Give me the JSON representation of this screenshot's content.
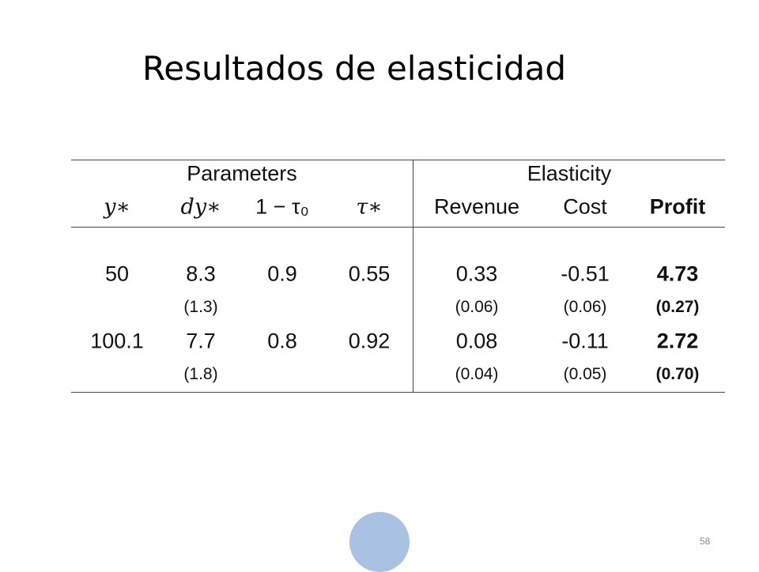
{
  "slide": {
    "title": "Resultados de elasticidad",
    "table": {
      "groups": [
        "Parameters",
        "Elasticity"
      ],
      "columns": [
        "y∗",
        "dy∗",
        "1 − τ₀",
        "τ∗",
        "Revenue",
        "Cost",
        "Profit"
      ],
      "rows": [
        [
          "50",
          "8.3",
          "0.9",
          "0.55",
          "0.33",
          "-0.51",
          "4.73"
        ],
        [
          null,
          "(1.3)",
          null,
          null,
          "(0.06)",
          "(0.06)",
          "(0.27)"
        ],
        [
          "100.1",
          "7.7",
          "0.8",
          "0.92",
          "0.08",
          "-0.11",
          "2.72"
        ],
        [
          null,
          "(1.8)",
          null,
          null,
          "(0.04)",
          "(0.05)",
          "(0.70)"
        ]
      ]
    },
    "page_number": "58"
  }
}
